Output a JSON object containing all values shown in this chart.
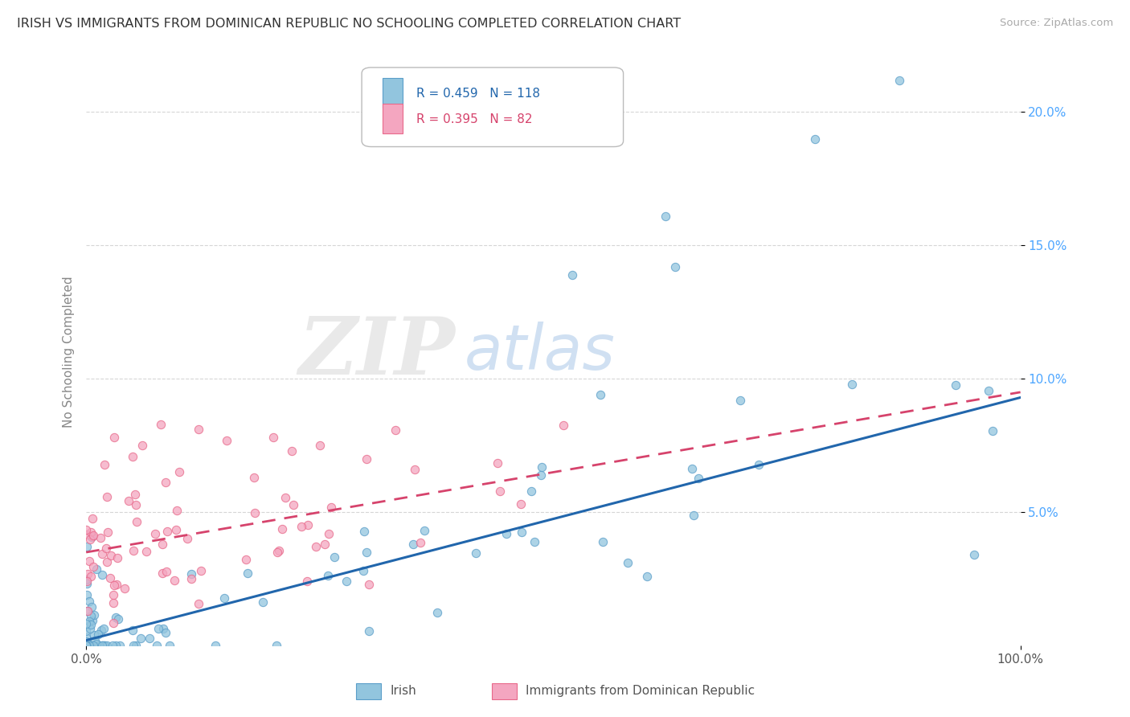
{
  "title": "IRISH VS IMMIGRANTS FROM DOMINICAN REPUBLIC NO SCHOOLING COMPLETED CORRELATION CHART",
  "source": "Source: ZipAtlas.com",
  "ylabel": "No Schooling Completed",
  "xlim": [
    0,
    100
  ],
  "ylim": [
    0,
    22
  ],
  "ytick_vals": [
    5.0,
    10.0,
    15.0,
    20.0
  ],
  "ytick_labels": [
    "5.0%",
    "10.0%",
    "15.0%",
    "20.0%"
  ],
  "xtick_vals": [
    0,
    100
  ],
  "xtick_labels": [
    "0.0%",
    "100.0%"
  ],
  "legend_blue_r": "0.459",
  "legend_blue_n": "118",
  "legend_pink_r": "0.395",
  "legend_pink_n": "82",
  "legend_label_blue": "Irish",
  "legend_label_pink": "Immigrants from Dominican Republic",
  "blue_color": "#92c5de",
  "pink_color": "#f4a6c0",
  "blue_edge_color": "#5b9ec9",
  "pink_edge_color": "#e8698a",
  "blue_line_color": "#2166ac",
  "pink_line_color": "#d6436c",
  "watermark_zip": "ZIP",
  "watermark_atlas": "atlas",
  "background_color": "#ffffff",
  "grid_color": "#cccccc",
  "tick_color": "#4da6ff",
  "ylabel_color": "#888888",
  "title_color": "#333333"
}
